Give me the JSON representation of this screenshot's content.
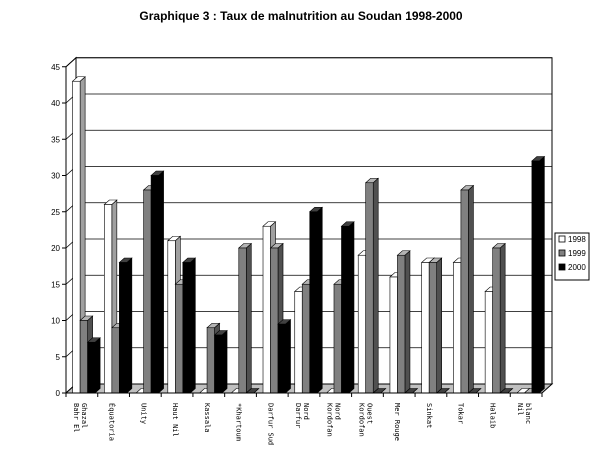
{
  "chart_data": {
    "type": "bar",
    "title": "Graphique 3 : Taux de malnutrition au Soudan 1998-2000",
    "xlabel": "",
    "ylabel": "",
    "ylim": [
      0,
      45
    ],
    "yticks": [
      0,
      5,
      10,
      15,
      20,
      25,
      30,
      35,
      40,
      45
    ],
    "grid": true,
    "legend_position": "right",
    "style": "3d-clustered-bar",
    "categories": [
      [
        "Bahr El",
        "Ghazal"
      ],
      [
        "Équatoria"
      ],
      [
        "Unity"
      ],
      [
        "Haut Nil"
      ],
      [
        "Kassala"
      ],
      [
        "*Khartoum"
      ],
      [
        "Darfur Sud"
      ],
      [
        "Darfur",
        "Nord"
      ],
      [
        "Kordofan",
        "Nord"
      ],
      [
        "Kordofan",
        "Ouest"
      ],
      [
        "Mer Rouge"
      ],
      [
        "Sinkat"
      ],
      [
        "Tokar"
      ],
      [
        "Halaib"
      ],
      [
        "Nil",
        "blanc"
      ]
    ],
    "series": [
      {
        "name": "1998",
        "color": "#ffffff",
        "top_color": "#ffffff",
        "side_color": "#a0a0a0",
        "values": [
          43,
          26,
          0,
          21,
          0,
          0,
          23,
          14,
          0,
          19,
          16,
          18,
          18,
          14,
          0
        ]
      },
      {
        "name": "1999",
        "color": "#808080",
        "top_color": "#b4b4b4",
        "side_color": "#505050",
        "values": [
          10,
          9,
          28,
          15,
          9,
          20,
          20,
          15,
          15,
          29,
          19,
          18,
          28,
          20,
          0
        ]
      },
      {
        "name": "2000",
        "color": "#000000",
        "top_color": "#404040",
        "side_color": "#000000",
        "values": [
          7,
          18,
          30,
          18,
          8,
          0,
          9.5,
          25,
          23,
          0,
          0,
          0,
          0,
          0,
          32
        ]
      }
    ]
  }
}
